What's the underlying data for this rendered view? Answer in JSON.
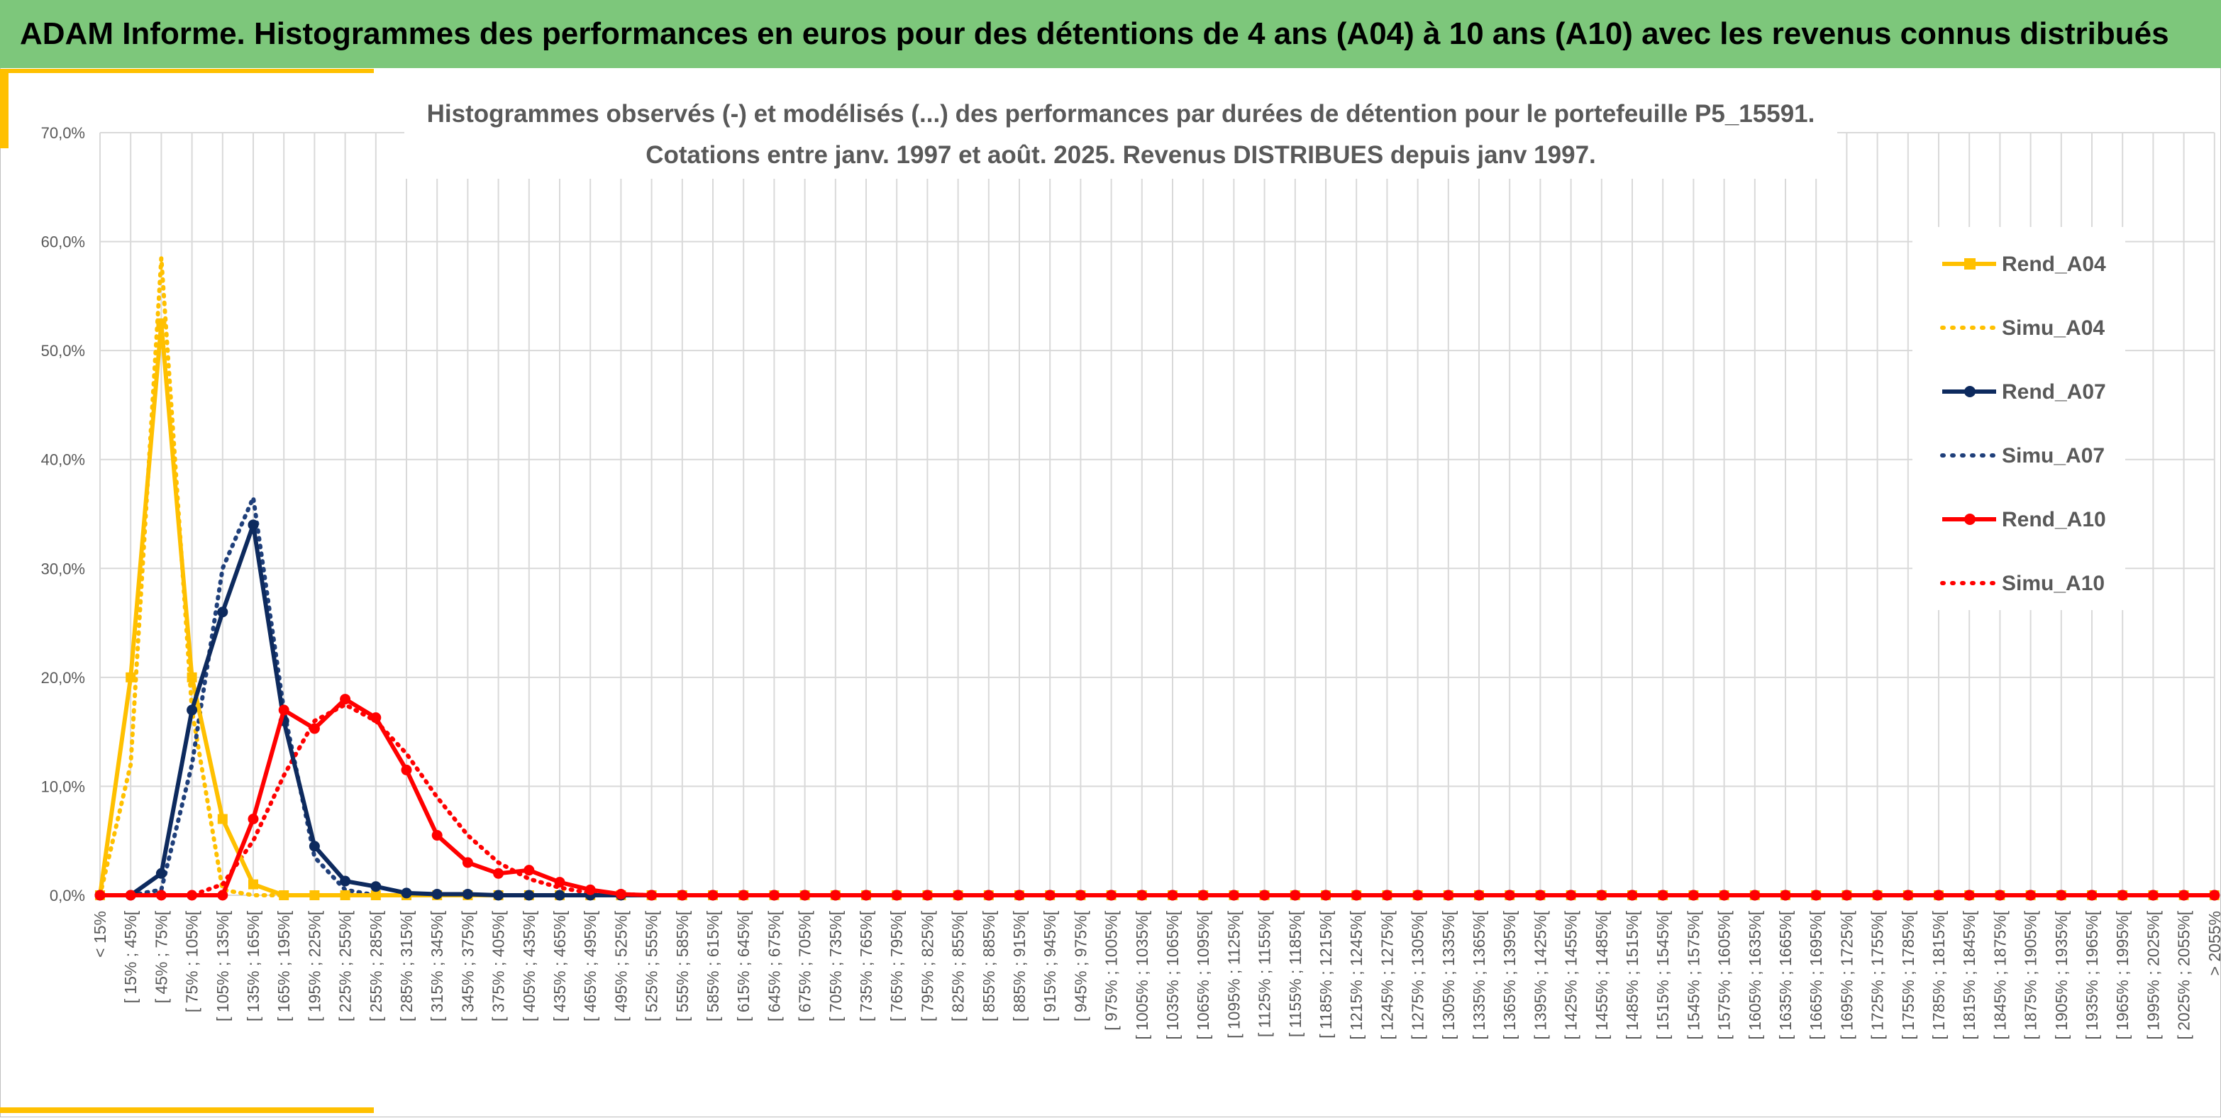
{
  "header": {
    "title": "ADAM Informe. Histogrammes des performances en euros pour des détentions de 4 ans (A04) à 10 ans (A10) avec les revenus connus distribués"
  },
  "colors": {
    "banner": "#7dc77b",
    "accent": "#ffc000",
    "grid": "#d9d9d9",
    "text": "#595959"
  },
  "chart_data": {
    "type": "line",
    "title": "Histogrammes observés (-) et modélisés (...) des performances par durées de détention pour le portefeuille P5_15591.",
    "subtitle": "Cotations entre janv. 1997 et août. 2025. Revenus DISTRIBUES depuis janv 1997.",
    "xlabel": "",
    "ylabel": "",
    "ylim": [
      0,
      70
    ],
    "yticks": [
      "0,0%",
      "10,0%",
      "20,0%",
      "30,0%",
      "40,0%",
      "50,0%",
      "60,0%",
      "70,0%"
    ],
    "grid": true,
    "legend_position": "right",
    "categories": [
      "< 15%",
      "[ 15% ; 45%[",
      "[ 45% ; 75%[",
      "[ 75% ; 105%[",
      "[ 105% ; 135%[",
      "[ 135% ; 165%[",
      "[ 165% ; 195%[",
      "[ 195% ; 225%[",
      "[ 225% ; 255%[",
      "[ 255% ; 285%[",
      "[ 285% ; 315%[",
      "[ 315% ; 345%[",
      "[ 345% ; 375%[",
      "[ 375% ; 405%[",
      "[ 405% ; 435%[",
      "[ 435% ; 465%[",
      "[ 465% ; 495%[",
      "[ 495% ; 525%[",
      "[ 525% ; 555%[",
      "[ 555% ; 585%[",
      "[ 585% ; 615%[",
      "[ 615% ; 645%[",
      "[ 645% ; 675%[",
      "[ 675% ; 705%[",
      "[ 705% ; 735%[",
      "[ 735% ; 765%[",
      "[ 765% ; 795%[",
      "[ 795% ; 825%[",
      "[ 825% ; 855%[",
      "[ 855% ; 885%[",
      "[ 885% ; 915%[",
      "[ 915% ; 945%[",
      "[ 945% ; 975%[",
      "[ 975% ; 1005%[",
      "[ 1005% ; 1035%[",
      "[ 1035% ; 1065%[",
      "[ 1065% ; 1095%[",
      "[ 1095% ; 1125%[",
      "[ 1125% ; 1155%[",
      "[ 1155% ; 1185%[",
      "[ 1185% ; 1215%[",
      "[ 1215% ; 1245%[",
      "[ 1245% ; 1275%[",
      "[ 1275% ; 1305%[",
      "[ 1305% ; 1335%[",
      "[ 1335% ; 1365%[",
      "[ 1365% ; 1395%[",
      "[ 1395% ; 1425%[",
      "[ 1425% ; 1455%[",
      "[ 1455% ; 1485%[",
      "[ 1485% ; 1515%[",
      "[ 1515% ; 1545%[",
      "[ 1545% ; 1575%[",
      "[ 1575% ; 1605%[",
      "[ 1605% ; 1635%[",
      "[ 1635% ; 1665%[",
      "[ 1665% ; 1695%[",
      "[ 1695% ; 1725%[",
      "[ 1725% ; 1755%[",
      "[ 1755% ; 1785%[",
      "[ 1785% ; 1815%[",
      "[ 1815% ; 1845%[",
      "[ 1845% ; 1875%[",
      "[ 1875% ; 1905%[",
      "[ 1905% ; 1935%[",
      "[ 1935% ; 1965%[",
      "[ 1965% ; 1995%[",
      "[ 1995% ; 2025%[",
      "[ 2025% ; 2055%[",
      "> 2055%"
    ],
    "series": [
      {
        "name": "Rend_A04",
        "style": "solid",
        "marker": "square",
        "color": "#ffc000",
        "values": [
          0,
          20,
          52.5,
          20,
          7,
          1,
          0,
          0,
          0,
          0,
          0,
          0,
          0,
          0,
          0,
          0,
          0,
          0,
          0,
          0,
          0,
          0,
          0,
          0,
          0,
          0,
          0,
          0,
          0,
          0,
          0,
          0,
          0,
          0,
          0,
          0,
          0,
          0,
          0,
          0,
          0,
          0,
          0,
          0,
          0,
          0,
          0,
          0,
          0,
          0,
          0,
          0,
          0,
          0,
          0,
          0,
          0,
          0,
          0,
          0,
          0,
          0,
          0,
          0,
          0,
          0,
          0,
          0,
          0,
          0
        ]
      },
      {
        "name": "Simu_A04",
        "style": "dotted",
        "marker": "none",
        "color": "#ffc000",
        "values": [
          0,
          12,
          58.5,
          17,
          0.5,
          0,
          0,
          0,
          0,
          0,
          0,
          0,
          0,
          0,
          0,
          0,
          0,
          0,
          0,
          0,
          0,
          0,
          0,
          0,
          0,
          0,
          0,
          0,
          0,
          0,
          0,
          0,
          0,
          0,
          0,
          0,
          0,
          0,
          0,
          0,
          0,
          0,
          0,
          0,
          0,
          0,
          0,
          0,
          0,
          0,
          0,
          0,
          0,
          0,
          0,
          0,
          0,
          0,
          0,
          0,
          0,
          0,
          0,
          0,
          0,
          0,
          0,
          0,
          0,
          0
        ]
      },
      {
        "name": "Rend_A07",
        "style": "solid",
        "marker": "circle",
        "color": "#0d2a5e",
        "values": [
          0,
          0,
          2,
          17,
          26,
          34,
          16,
          4.5,
          1.3,
          0.8,
          0.2,
          0.1,
          0.1,
          0,
          0,
          0,
          0,
          0,
          0,
          0,
          0,
          0,
          0,
          0,
          0,
          0,
          0,
          0,
          0,
          0,
          0,
          0,
          0,
          0,
          0,
          0,
          0,
          0,
          0,
          0,
          0,
          0,
          0,
          0,
          0,
          0,
          0,
          0,
          0,
          0,
          0,
          0,
          0,
          0,
          0,
          0,
          0,
          0,
          0,
          0,
          0,
          0,
          0,
          0,
          0,
          0,
          0,
          0,
          0,
          0
        ]
      },
      {
        "name": "Simu_A07",
        "style": "dotted",
        "marker": "none",
        "color": "#1f3f7a",
        "values": [
          0,
          0,
          0.5,
          12,
          30,
          36.5,
          17,
          3.5,
          0.5,
          0,
          0,
          0,
          0,
          0,
          0,
          0,
          0,
          0,
          0,
          0,
          0,
          0,
          0,
          0,
          0,
          0,
          0,
          0,
          0,
          0,
          0,
          0,
          0,
          0,
          0,
          0,
          0,
          0,
          0,
          0,
          0,
          0,
          0,
          0,
          0,
          0,
          0,
          0,
          0,
          0,
          0,
          0,
          0,
          0,
          0,
          0,
          0,
          0,
          0,
          0,
          0,
          0,
          0,
          0,
          0,
          0,
          0,
          0,
          0,
          0
        ]
      },
      {
        "name": "Rend_A10",
        "style": "solid",
        "marker": "circle",
        "color": "#ff0000",
        "values": [
          0,
          0,
          0,
          0,
          0,
          7,
          17,
          15.3,
          18,
          16.3,
          11.5,
          5.5,
          3,
          2,
          2.3,
          1.2,
          0.5,
          0.1,
          0,
          0,
          0,
          0,
          0,
          0,
          0,
          0,
          0,
          0,
          0,
          0,
          0,
          0,
          0,
          0,
          0,
          0,
          0,
          0,
          0,
          0,
          0,
          0,
          0,
          0,
          0,
          0,
          0,
          0,
          0,
          0,
          0,
          0,
          0,
          0,
          0,
          0,
          0,
          0,
          0,
          0,
          0,
          0,
          0,
          0,
          0,
          0,
          0,
          0,
          0,
          0
        ]
      },
      {
        "name": "Simu_A10",
        "style": "dotted",
        "marker": "none",
        "color": "#ff0000",
        "values": [
          0,
          0,
          0,
          0,
          1,
          5,
          11,
          16,
          17.5,
          16,
          13,
          9,
          5.5,
          3,
          1.5,
          0.7,
          0.2,
          0.1,
          0,
          0,
          0,
          0,
          0,
          0,
          0,
          0,
          0,
          0,
          0,
          0,
          0,
          0,
          0,
          0,
          0,
          0,
          0,
          0,
          0,
          0,
          0,
          0,
          0,
          0,
          0,
          0,
          0,
          0,
          0,
          0,
          0,
          0,
          0,
          0,
          0,
          0,
          0,
          0,
          0,
          0,
          0,
          0,
          0,
          0,
          0,
          0,
          0,
          0,
          0,
          0
        ]
      }
    ]
  }
}
